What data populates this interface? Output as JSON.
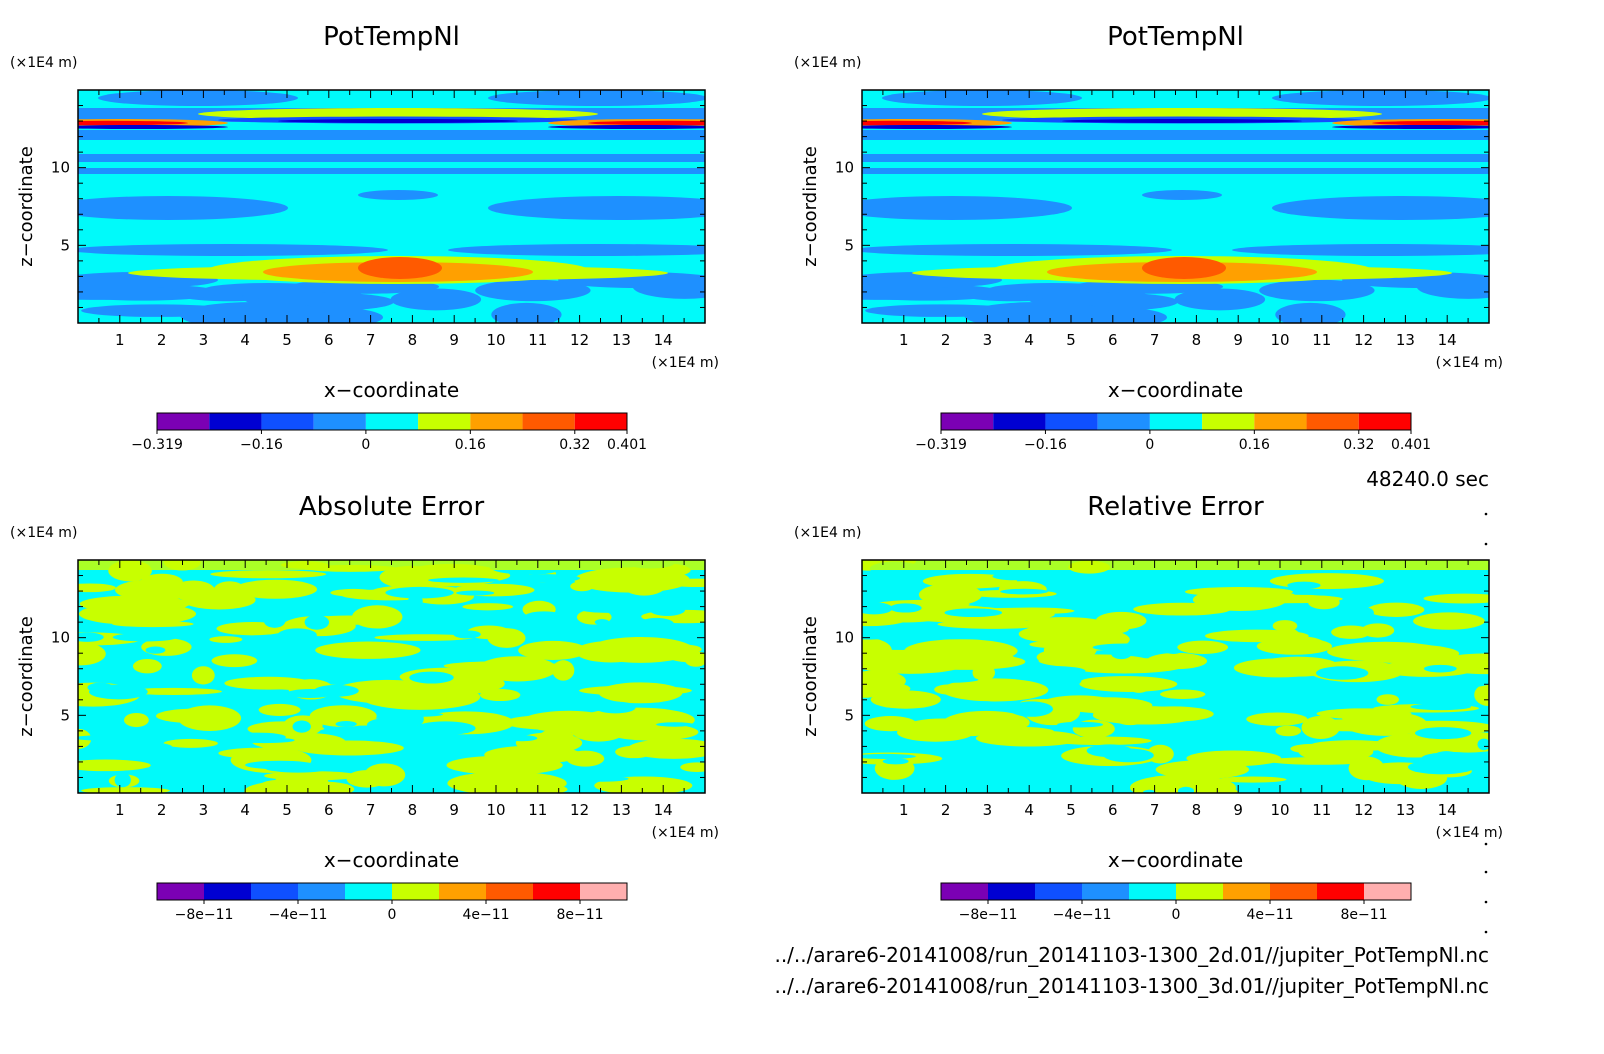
{
  "time_label": "48240.0 sec",
  "files": [
    "../../arare6-20141008/run_20141103-1300_2d.01//jupiter_PotTempNl.nc",
    "../../arare6-20141008/run_20141103-1300_3d.01//jupiter_PotTempNl.nc"
  ],
  "colors": {
    "purple": "#7b00b4",
    "navy": "#0000d2",
    "blue": "#0f50ff",
    "lightblue": "#1e90ff",
    "cyan": "#00fafa",
    "lime": "#c8ff00",
    "orange": "#ffa000",
    "orangered": "#ff5a00",
    "red": "#ff0000",
    "pink": "#ffafaf"
  },
  "chart_data": [
    {
      "type": "heatmap",
      "title": "PotTempNl",
      "xlabel": "x−coordinate",
      "ylabel": "z−coordinate",
      "x_unit": "(×1E4 m)",
      "y_unit": "(×1E4 m)",
      "xlim": [
        0,
        15
      ],
      "ylim": [
        0,
        15
      ],
      "x_ticks": [
        "1",
        "2",
        "3",
        "4",
        "5",
        "6",
        "7",
        "8",
        "9",
        "10",
        "11",
        "12",
        "13",
        "14"
      ],
      "y_ticks": [
        "5",
        "10"
      ],
      "colorbar": {
        "tick_labels": [
          "−0.319",
          "−0.16",
          "0",
          "0.16",
          "0.32",
          "0.401"
        ],
        "colors": [
          "#7b00b4",
          "#0000d2",
          "#0f50ff",
          "#1e90ff",
          "#00fafa",
          "#c8ff00",
          "#ffa000",
          "#ff5a00",
          "#ff0000"
        ]
      }
    },
    {
      "type": "heatmap",
      "title": "PotTempNl",
      "xlabel": "x−coordinate",
      "ylabel": "z−coordinate",
      "x_unit": "(×1E4 m)",
      "y_unit": "(×1E4 m)",
      "xlim": [
        0,
        15
      ],
      "ylim": [
        0,
        15
      ],
      "x_ticks": [
        "1",
        "2",
        "3",
        "4",
        "5",
        "6",
        "7",
        "8",
        "9",
        "10",
        "11",
        "12",
        "13",
        "14"
      ],
      "y_ticks": [
        "5",
        "10"
      ],
      "colorbar": {
        "tick_labels": [
          "−0.319",
          "−0.16",
          "0",
          "0.16",
          "0.32",
          "0.401"
        ],
        "colors": [
          "#7b00b4",
          "#0000d2",
          "#0f50ff",
          "#1e90ff",
          "#00fafa",
          "#c8ff00",
          "#ffa000",
          "#ff5a00",
          "#ff0000"
        ]
      }
    },
    {
      "type": "heatmap",
      "title": "Absolute Error",
      "xlabel": "x−coordinate",
      "ylabel": "z−coordinate",
      "x_unit": "(×1E4 m)",
      "y_unit": "(×1E4 m)",
      "xlim": [
        0,
        15
      ],
      "ylim": [
        0,
        15
      ],
      "x_ticks": [
        "1",
        "2",
        "3",
        "4",
        "5",
        "6",
        "7",
        "8",
        "9",
        "10",
        "11",
        "12",
        "13",
        "14"
      ],
      "y_ticks": [
        "5",
        "10"
      ],
      "colorbar": {
        "tick_labels": [
          "−8e−11",
          "−4e−11",
          "0",
          "4e−11",
          "8e−11"
        ],
        "colors": [
          "#7b00b4",
          "#0000d2",
          "#0f50ff",
          "#1e90ff",
          "#00fafa",
          "#c8ff00",
          "#ffa000",
          "#ff5a00",
          "#ff0000",
          "#ffafaf"
        ]
      }
    },
    {
      "type": "heatmap",
      "title": "Relative Error",
      "xlabel": "x−coordinate",
      "ylabel": "z−coordinate",
      "x_unit": "(×1E4 m)",
      "y_unit": "(×1E4 m)",
      "xlim": [
        0,
        15
      ],
      "ylim": [
        0,
        15
      ],
      "x_ticks": [
        "1",
        "2",
        "3",
        "4",
        "5",
        "6",
        "7",
        "8",
        "9",
        "10",
        "11",
        "12",
        "13",
        "14"
      ],
      "y_ticks": [
        "5",
        "10"
      ],
      "colorbar": {
        "tick_labels": [
          "−8e−11",
          "−4e−11",
          "0",
          "4e−11",
          "8e−11"
        ],
        "colors": [
          "#7b00b4",
          "#0000d2",
          "#0f50ff",
          "#1e90ff",
          "#00fafa",
          "#c8ff00",
          "#ffa000",
          "#ff5a00",
          "#ff0000",
          "#ffafaf"
        ]
      }
    }
  ]
}
